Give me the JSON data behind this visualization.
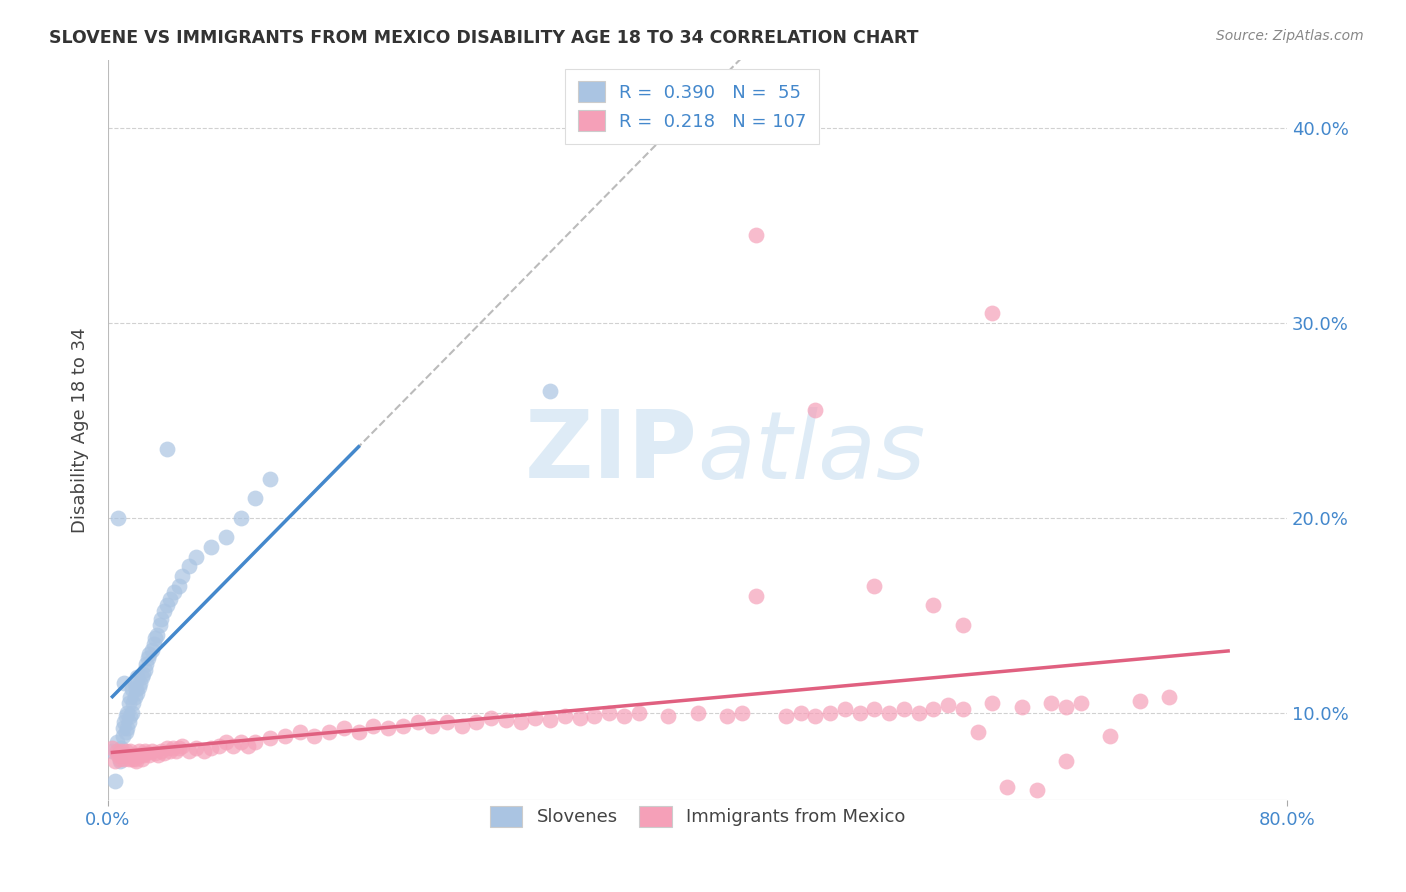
{
  "title": "SLOVENE VS IMMIGRANTS FROM MEXICO DISABILITY AGE 18 TO 34 CORRELATION CHART",
  "source": "Source: ZipAtlas.com",
  "ylabel": "Disability Age 18 to 34",
  "xlim": [
    0.0,
    0.8
  ],
  "ylim": [
    0.055,
    0.435
  ],
  "slovene_R": 0.39,
  "slovene_N": 55,
  "mexico_R": 0.218,
  "mexico_N": 107,
  "slovene_color": "#aac4e2",
  "slovene_line_color": "#4488cc",
  "mexico_color": "#f5a0b8",
  "mexico_line_color": "#e06080",
  "background_color": "#ffffff",
  "grid_color": "#cccccc",
  "ytick_vals": [
    0.1,
    0.2,
    0.3,
    0.4
  ],
  "ytick_labels": [
    "10.0%",
    "20.0%",
    "30.0%",
    "40.0%"
  ],
  "slovene_x": [
    0.003,
    0.005,
    0.006,
    0.007,
    0.008,
    0.009,
    0.01,
    0.01,
    0.011,
    0.011,
    0.012,
    0.012,
    0.013,
    0.013,
    0.014,
    0.014,
    0.015,
    0.015,
    0.016,
    0.016,
    0.017,
    0.018,
    0.018,
    0.019,
    0.02,
    0.02,
    0.021,
    0.022,
    0.023,
    0.024,
    0.025,
    0.026,
    0.027,
    0.028,
    0.03,
    0.031,
    0.032,
    0.033,
    0.035,
    0.036,
    0.038,
    0.04,
    0.042,
    0.045,
    0.048,
    0.05,
    0.055,
    0.06,
    0.07,
    0.08,
    0.09,
    0.1,
    0.11,
    0.04,
    0.3
  ],
  "slovene_y": [
    0.08,
    0.065,
    0.085,
    0.2,
    0.075,
    0.082,
    0.088,
    0.092,
    0.095,
    0.115,
    0.09,
    0.098,
    0.092,
    0.1,
    0.095,
    0.105,
    0.098,
    0.108,
    0.1,
    0.112,
    0.105,
    0.108,
    0.115,
    0.112,
    0.11,
    0.118,
    0.113,
    0.115,
    0.118,
    0.12,
    0.122,
    0.125,
    0.128,
    0.13,
    0.132,
    0.135,
    0.138,
    0.14,
    0.145,
    0.148,
    0.152,
    0.155,
    0.158,
    0.162,
    0.165,
    0.17,
    0.175,
    0.18,
    0.185,
    0.19,
    0.2,
    0.21,
    0.22,
    0.235,
    0.265
  ],
  "mexico_x": [
    0.003,
    0.005,
    0.006,
    0.007,
    0.008,
    0.009,
    0.01,
    0.011,
    0.012,
    0.013,
    0.014,
    0.015,
    0.016,
    0.017,
    0.018,
    0.019,
    0.02,
    0.021,
    0.022,
    0.023,
    0.024,
    0.025,
    0.026,
    0.028,
    0.03,
    0.032,
    0.034,
    0.036,
    0.038,
    0.04,
    0.042,
    0.044,
    0.046,
    0.048,
    0.05,
    0.055,
    0.06,
    0.065,
    0.07,
    0.075,
    0.08,
    0.085,
    0.09,
    0.095,
    0.1,
    0.11,
    0.12,
    0.13,
    0.14,
    0.15,
    0.16,
    0.17,
    0.18,
    0.19,
    0.2,
    0.21,
    0.22,
    0.23,
    0.24,
    0.25,
    0.26,
    0.27,
    0.28,
    0.29,
    0.3,
    0.31,
    0.32,
    0.33,
    0.34,
    0.35,
    0.36,
    0.38,
    0.4,
    0.42,
    0.43,
    0.44,
    0.46,
    0.47,
    0.48,
    0.49,
    0.5,
    0.51,
    0.52,
    0.53,
    0.54,
    0.55,
    0.56,
    0.57,
    0.58,
    0.59,
    0.6,
    0.62,
    0.64,
    0.65,
    0.66,
    0.68,
    0.7,
    0.72,
    0.44,
    0.6,
    0.48,
    0.52,
    0.56,
    0.58,
    0.61,
    0.63,
    0.65
  ],
  "mexico_y": [
    0.082,
    0.075,
    0.08,
    0.078,
    0.076,
    0.08,
    0.078,
    0.076,
    0.08,
    0.078,
    0.076,
    0.08,
    0.076,
    0.078,
    0.076,
    0.075,
    0.078,
    0.08,
    0.078,
    0.076,
    0.078,
    0.08,
    0.079,
    0.078,
    0.08,
    0.079,
    0.078,
    0.08,
    0.079,
    0.082,
    0.08,
    0.082,
    0.08,
    0.082,
    0.083,
    0.08,
    0.082,
    0.08,
    0.082,
    0.083,
    0.085,
    0.083,
    0.085,
    0.083,
    0.085,
    0.087,
    0.088,
    0.09,
    0.088,
    0.09,
    0.092,
    0.09,
    0.093,
    0.092,
    0.093,
    0.095,
    0.093,
    0.095,
    0.093,
    0.095,
    0.097,
    0.096,
    0.095,
    0.097,
    0.096,
    0.098,
    0.097,
    0.098,
    0.1,
    0.098,
    0.1,
    0.098,
    0.1,
    0.098,
    0.1,
    0.16,
    0.098,
    0.1,
    0.098,
    0.1,
    0.102,
    0.1,
    0.102,
    0.1,
    0.102,
    0.1,
    0.102,
    0.104,
    0.102,
    0.09,
    0.105,
    0.103,
    0.105,
    0.103,
    0.105,
    0.088,
    0.106,
    0.108,
    0.345,
    0.305,
    0.255,
    0.165,
    0.155,
    0.145,
    0.062,
    0.06,
    0.075
  ]
}
